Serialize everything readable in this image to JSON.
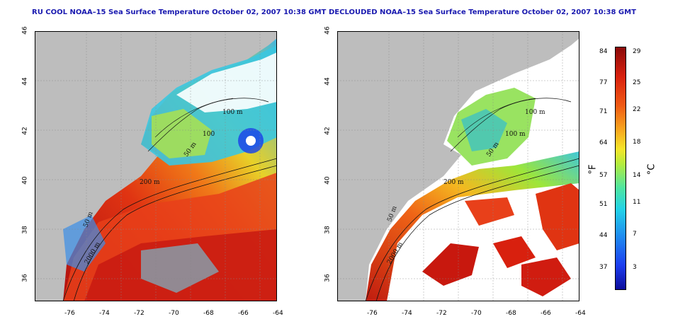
{
  "maps": [
    {
      "title": "RU COOL NOAA–15 Sea Surface Temperature October 02, 2007 10:38 GMT",
      "x_ticks": [
        "-76",
        "-74",
        "-72",
        "-70",
        "-68",
        "-66",
        "-64"
      ],
      "y_ticks": [
        "46",
        "44",
        "42",
        "40",
        "38",
        "36"
      ],
      "contour_labels": [
        "100 m",
        "100",
        "50 m",
        "200 m",
        "50 m",
        "2000 m"
      ]
    },
    {
      "title": "DECLOUDED NOAA–15 Sea Surface Temperature October 02, 2007 10:38 GMT",
      "x_ticks": [
        "-76",
        "-74",
        "-72",
        "-70",
        "-68",
        "-66",
        "-64"
      ],
      "y_ticks": [
        "46",
        "44",
        "42",
        "40",
        "38",
        "36"
      ],
      "contour_labels": [
        "100 m",
        "100 m",
        "50 m",
        "200 m",
        "50 m",
        "2000 m"
      ]
    }
  ],
  "map_extent": {
    "lon": [
      -77,
      -63
    ],
    "lat": [
      35,
      46
    ]
  },
  "colorbar": {
    "fahrenheit_ticks": [
      "84",
      "77",
      "71",
      "64",
      "57",
      "51",
      "44",
      "37"
    ],
    "celsius_ticks": [
      "29",
      "25",
      "22",
      "18",
      "14",
      "11",
      "7",
      "3"
    ],
    "fahrenheit_label": "°F",
    "celsius_label": "°C",
    "colors": [
      "#0c0c9a",
      "#1c3ef0",
      "#1f8cf0",
      "#22d2e8",
      "#4fe6a0",
      "#b6ec3c",
      "#f6e52a",
      "#f8a61e",
      "#f05a14",
      "#d8200e",
      "#8a0a0a"
    ]
  },
  "colors": {
    "land": "#bdbdbd",
    "cloud_masked": "#ffffff",
    "title_text": "#1a1ab0"
  }
}
